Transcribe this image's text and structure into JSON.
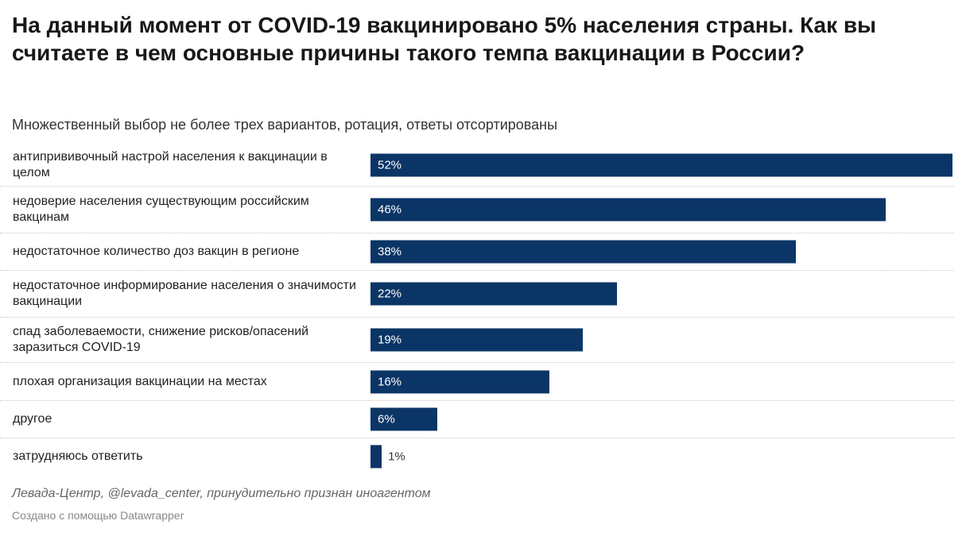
{
  "title": "На данный момент от COVID-19 вакцинировано 5% населения страны. Как вы считаете в чем основные причины такого темпа вакцинации в России?",
  "subtitle": "Множественный выбор не более трех вариантов, ротация, ответы отсортированы",
  "source": "Левада-Центр, @levada_center, принудительно признан иноагентом",
  "credit": "Создано с помощью Datawrapper",
  "chart_data": {
    "type": "bar",
    "orientation": "horizontal",
    "color": "#0b3566",
    "categories": [
      "антипрививочный настрой населения к вакцинации в целом",
      "недоверие населения существующим российским вакцинам",
      "недостаточное количество доз вакцин в регионе",
      "недостаточное информирование населения о значимости вакцинации",
      "спад заболеваемости, снижение рисков/опасений заразиться COVID-19",
      "плохая организация вакцинации на местах",
      "другое",
      "затрудняюсь ответить"
    ],
    "values": [
      52,
      46,
      38,
      22,
      19,
      16,
      6,
      1
    ],
    "labels": [
      "52%",
      "46%",
      "38%",
      "22%",
      "19%",
      "16%",
      "6%",
      "1%"
    ],
    "xlim": [
      0,
      52
    ]
  }
}
